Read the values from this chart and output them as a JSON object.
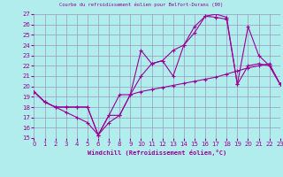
{
  "title": "Courbe du refroidissement éolien pour Belfort-Dorans (90)",
  "xlabel": "Windchill (Refroidissement éolien,°C)",
  "bg_color": "#b2eded",
  "line_color": "#990099",
  "grid_color": "#9999bb",
  "xlim": [
    0,
    23
  ],
  "ylim": [
    15,
    27
  ],
  "xticks": [
    0,
    1,
    2,
    3,
    4,
    5,
    6,
    7,
    8,
    9,
    10,
    11,
    12,
    13,
    14,
    15,
    16,
    17,
    18,
    19,
    20,
    21,
    22,
    23
  ],
  "yticks": [
    15,
    16,
    17,
    18,
    19,
    20,
    21,
    22,
    23,
    24,
    25,
    26,
    27
  ],
  "series1_x": [
    0,
    1,
    2,
    3,
    4,
    5,
    6,
    7,
    8,
    9,
    10,
    11,
    12,
    13,
    14,
    15,
    16,
    17,
    18,
    19,
    20,
    21,
    22,
    23
  ],
  "series1_y": [
    19.5,
    18.5,
    18.0,
    18.0,
    18.0,
    18.0,
    15.3,
    17.2,
    17.2,
    19.2,
    19.5,
    19.7,
    19.9,
    20.1,
    20.3,
    20.5,
    20.7,
    20.9,
    21.2,
    21.5,
    21.8,
    22.0,
    22.2,
    20.2
  ],
  "series2_x": [
    0,
    1,
    2,
    3,
    4,
    5,
    6,
    7,
    8,
    9,
    10,
    11,
    12,
    13,
    14,
    15,
    16,
    17,
    18,
    19,
    20,
    21,
    22,
    23
  ],
  "series2_y": [
    19.5,
    18.5,
    18.0,
    17.5,
    17.0,
    16.5,
    15.3,
    16.5,
    17.2,
    19.2,
    21.0,
    22.2,
    22.5,
    21.0,
    24.0,
    25.2,
    26.8,
    27.0,
    26.7,
    20.2,
    25.8,
    23.0,
    22.0,
    20.2
  ],
  "series3_x": [
    0,
    1,
    2,
    3,
    4,
    5,
    6,
    7,
    8,
    9,
    10,
    11,
    12,
    13,
    14,
    15,
    16,
    17,
    18,
    19,
    20,
    21,
    22,
    23
  ],
  "series3_y": [
    19.5,
    18.5,
    18.0,
    18.0,
    18.0,
    18.0,
    15.3,
    17.2,
    19.2,
    19.2,
    23.5,
    22.2,
    22.5,
    23.5,
    24.0,
    25.8,
    26.8,
    26.7,
    26.5,
    20.2,
    22.0,
    22.2,
    22.0,
    20.2
  ]
}
